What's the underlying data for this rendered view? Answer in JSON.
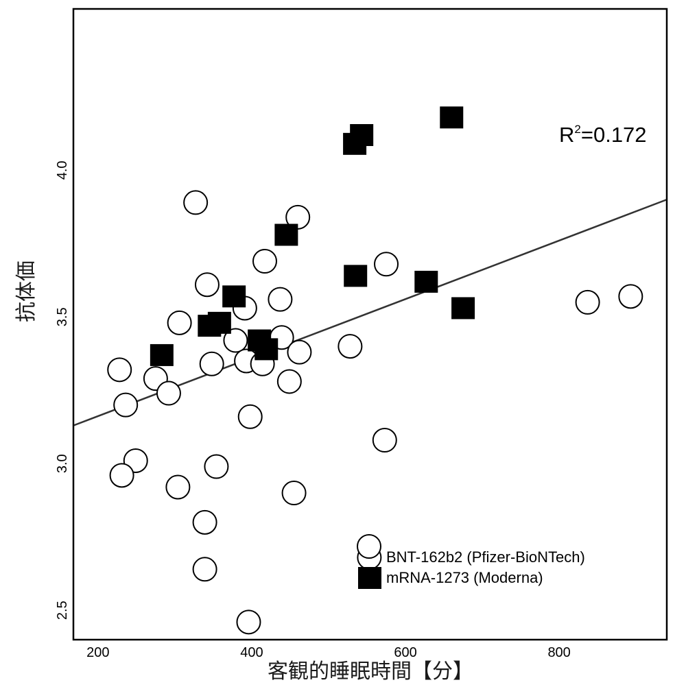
{
  "chart_data": {
    "type": "scatter",
    "title": "",
    "xlabel": "客観的睡眠時間【分】",
    "ylabel": "抗体価",
    "xlim": [
      168,
      940
    ],
    "ylim": [
      2.4,
      4.55
    ],
    "xticks": [
      "200",
      "400",
      "600",
      "800"
    ],
    "yticks": [
      "2.5",
      "3.0",
      "3.5",
      "4.0"
    ],
    "grid": false,
    "legend_position": "bottom-right",
    "annotation": {
      "r2_prefix": "R",
      "r2_sup": "2",
      "r2_value": "=0.172"
    },
    "regression_line": {
      "x": [
        168,
        940
      ],
      "y": [
        3.13,
        3.9
      ]
    },
    "series": [
      {
        "name": "BNT-162b2 (Pfizer-BioNTech)",
        "marker": "circle",
        "color": "#ffffff",
        "points": [
          [
            327,
            3.89
          ],
          [
            460,
            3.84
          ],
          [
            417,
            3.69
          ],
          [
            575,
            3.68
          ],
          [
            342,
            3.61
          ],
          [
            437,
            3.56
          ],
          [
            837,
            3.55
          ],
          [
            893,
            3.57
          ],
          [
            391,
            3.53
          ],
          [
            306,
            3.48
          ],
          [
            379,
            3.42
          ],
          [
            439,
            3.43
          ],
          [
            528,
            3.4
          ],
          [
            462,
            3.38
          ],
          [
            228,
            3.32
          ],
          [
            348,
            3.34
          ],
          [
            393,
            3.35
          ],
          [
            414,
            3.34
          ],
          [
            275,
            3.29
          ],
          [
            449,
            3.28
          ],
          [
            292,
            3.24
          ],
          [
            236,
            3.2
          ],
          [
            398,
            3.16
          ],
          [
            573,
            3.08
          ],
          [
            249,
            3.01
          ],
          [
            231,
            2.96
          ],
          [
            354,
            2.99
          ],
          [
            304,
            2.92
          ],
          [
            455,
            2.9
          ],
          [
            339,
            2.8
          ],
          [
            339,
            2.64
          ],
          [
            553,
            2.68
          ],
          [
            396,
            2.46
          ]
        ]
      },
      {
        "name": "mRNA-1273 (Moderna)",
        "marker": "square",
        "color": "#000000",
        "points": [
          [
            660,
            4.18
          ],
          [
            543,
            4.12
          ],
          [
            534,
            4.09
          ],
          [
            445,
            3.78
          ],
          [
            535,
            3.64
          ],
          [
            627,
            3.62
          ],
          [
            675,
            3.53
          ],
          [
            377,
            3.57
          ],
          [
            345,
            3.47
          ],
          [
            358,
            3.48
          ],
          [
            283,
            3.37
          ],
          [
            410,
            3.42
          ],
          [
            419,
            3.39
          ]
        ]
      }
    ]
  }
}
